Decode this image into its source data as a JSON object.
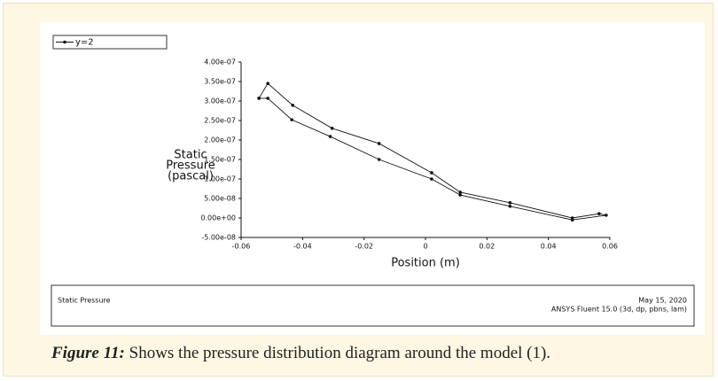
{
  "chart_data": {
    "type": "line",
    "series": [
      {
        "name": "y=2",
        "color": "#111111",
        "x": [
          -0.0542,
          -0.0513,
          -0.0432,
          -0.0304,
          -0.0151,
          0.002,
          0.0113,
          0.0275,
          0.0478,
          0.0565,
          0.0588,
          0.0478,
          0.0275,
          0.0113,
          0.002,
          -0.0151,
          -0.031,
          -0.0435,
          -0.0513,
          -0.0542
        ],
        "values": [
          3.07e-07,
          3.45e-07,
          2.89e-07,
          2.3e-07,
          1.91e-07,
          1.16e-07,
          6.6e-08,
          3.9e-08,
          0,
          1.1e-08,
          7e-09,
          -5e-09,
          3e-08,
          5.9e-08,
          1e-07,
          1.5e-07,
          2.09e-07,
          2.52e-07,
          3.07e-07,
          3.07e-07
        ]
      }
    ],
    "xlabel": "Position (m)",
    "ylabel": [
      "Static",
      "Pressure",
      "(pascal)"
    ],
    "xlim": [
      -0.06,
      0.06
    ],
    "xticks": [
      -0.06,
      -0.04,
      -0.02,
      0,
      0.02,
      0.04,
      0.06
    ],
    "ylim": [
      -5e-08,
      4e-07
    ],
    "yticks": [
      {
        "value": -5e-08,
        "label": "-5.00e-08"
      },
      {
        "value": 0,
        "label": "0.00e+00"
      },
      {
        "value": 5e-08,
        "label": "5.00e-08"
      },
      {
        "value": 1e-07,
        "label": "1.00e-07"
      },
      {
        "value": 1.5e-07,
        "label": "1.50e-07"
      },
      {
        "value": 2e-07,
        "label": "2.00e-07"
      },
      {
        "value": 2.5e-07,
        "label": "2.50e-07"
      },
      {
        "value": 3e-07,
        "label": "3.00e-07"
      },
      {
        "value": 3.5e-07,
        "label": "3.50e-07"
      },
      {
        "value": 4e-07,
        "label": "4.00e-07"
      }
    ],
    "grid": false
  },
  "footer": {
    "left": "Static Pressure",
    "date": "May 15, 2020",
    "software": "ANSYS Fluent 15.0 (3d, dp, pbns, lam)"
  },
  "caption": {
    "label": "Figure 11:",
    "text": "Shows the pressure distribution diagram around the model (1)."
  }
}
